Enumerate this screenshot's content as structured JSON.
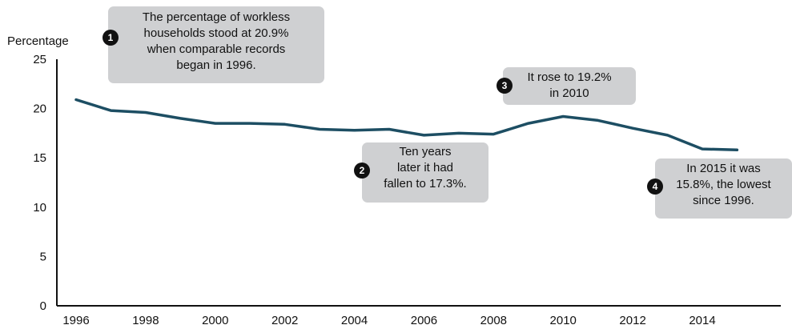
{
  "chart_data": {
    "type": "line",
    "ylabel": "Percentage",
    "xlabel": "",
    "ylim": [
      0,
      25
    ],
    "yticks": [
      "0",
      "5",
      "10",
      "15",
      "20",
      "25"
    ],
    "xticks": [
      "1996",
      "1998",
      "2000",
      "2002",
      "2004",
      "2006",
      "2008",
      "2010",
      "2012",
      "2014"
    ],
    "grid": false,
    "series": [
      {
        "color": "#1d4e63",
        "x": [
          1996,
          1997,
          1998,
          1999,
          2000,
          2001,
          2002,
          2003,
          2004,
          2005,
          2006,
          2007,
          2008,
          2009,
          2010,
          2011,
          2012,
          2013,
          2014,
          2015
        ],
        "values": [
          20.9,
          19.8,
          19.6,
          19.0,
          18.5,
          18.5,
          18.4,
          17.9,
          17.8,
          17.9,
          17.3,
          17.5,
          17.4,
          18.5,
          19.2,
          18.8,
          18.0,
          17.3,
          15.9,
          15.8
        ]
      }
    ],
    "annotations": [
      {
        "number": "1",
        "lines": [
          "The percentage of workless",
          "households stood at 20.9%",
          "when comparable records",
          "began in 1996."
        ]
      },
      {
        "number": "2",
        "lines": [
          "Ten years",
          "later it had",
          "fallen to 17.3%."
        ]
      },
      {
        "number": "3",
        "lines": [
          "It rose to 19.2%",
          "in 2010"
        ]
      },
      {
        "number": "4",
        "lines": [
          "In 2015 it was",
          "15.8%, the lowest",
          "since 1996."
        ]
      }
    ]
  },
  "colors": {
    "line": "#1d4e63",
    "callout_bg": "#cfd0d2",
    "badge": "#111111"
  }
}
